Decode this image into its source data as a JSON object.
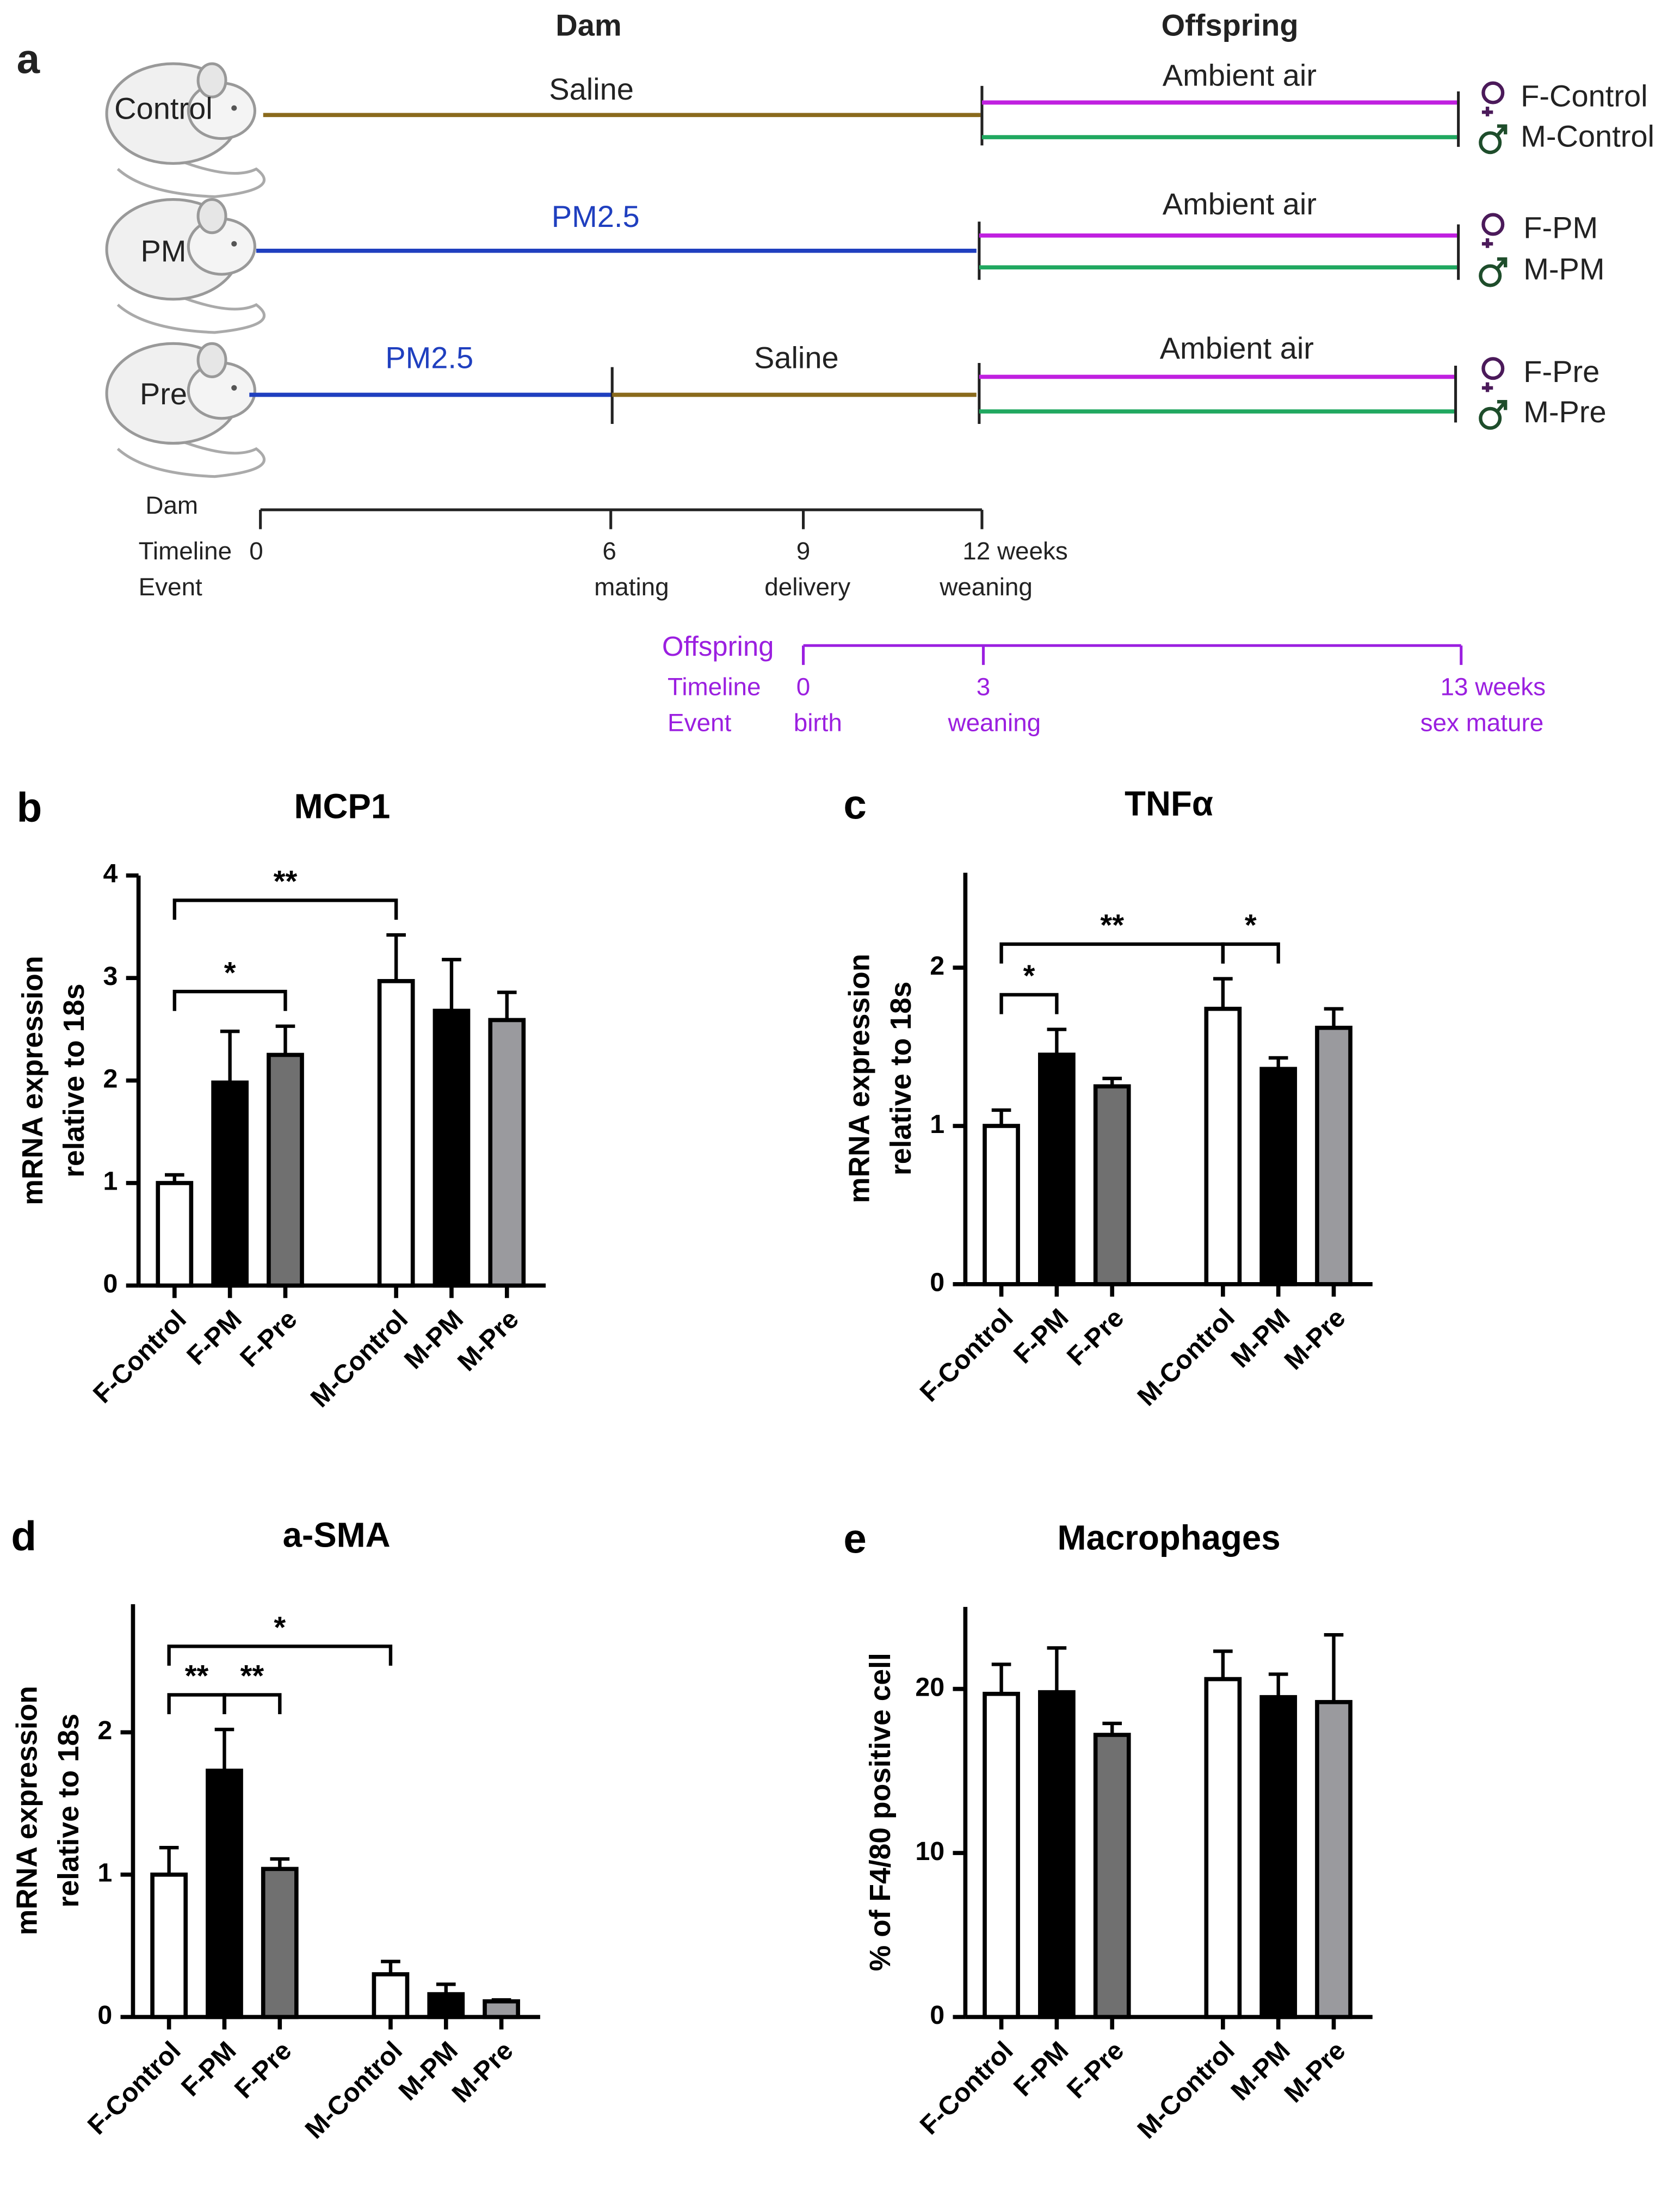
{
  "panel_a": {
    "label": "a",
    "dam_header": "Dam",
    "offspring_header": "Offspring",
    "rows": [
      {
        "mouse": "Control",
        "dam_segments": [
          "Saline"
        ],
        "offspring_exposure": "Ambient air",
        "outcomes": [
          "F-Control",
          "M-Control"
        ]
      },
      {
        "mouse": "PM",
        "dam_segments": [
          "PM2.5"
        ],
        "offspring_exposure": "Ambient air",
        "outcomes": [
          "F-PM",
          "M-PM"
        ]
      },
      {
        "mouse": "Pre",
        "dam_segments": [
          "PM2.5",
          "Saline"
        ],
        "offspring_exposure": "Ambient air",
        "outcomes": [
          "F-Pre",
          "M-Pre"
        ]
      }
    ],
    "dam_timeline": {
      "label": "Dam",
      "timeline_label": "Timeline",
      "event_label": "Event",
      "ticks": [
        {
          "time": "0"
        },
        {
          "time": "6",
          "event": "mating"
        },
        {
          "time": "9",
          "event": "delivery"
        },
        {
          "time": "12 weeks",
          "event": "weaning"
        }
      ]
    },
    "offspring_timeline": {
      "label": "Offspring",
      "timeline_label": "Timeline",
      "event_label": "Event",
      "ticks": [
        {
          "time": "0",
          "event": "birth"
        },
        {
          "time": "3",
          "event": "weaning"
        },
        {
          "time": "13 weeks",
          "event": "sex mature"
        }
      ]
    }
  },
  "chart_data": [
    {
      "type": "bar",
      "panel": "b",
      "title": "MCP1",
      "ylabel": [
        "mRNA expression",
        "relative to 18s"
      ],
      "categories": [
        "F-Control",
        "F-PM",
        "F-Pre",
        "M-Control",
        "M-PM",
        "M-Pre"
      ],
      "values": [
        1.0,
        1.98,
        2.25,
        2.97,
        2.68,
        2.59
      ],
      "errors": [
        0.08,
        0.5,
        0.28,
        0.45,
        0.5,
        0.27
      ],
      "colors": [
        "#ffffff",
        "#000000",
        "#707070",
        "#ffffff",
        "#000000",
        "#9a9a9e"
      ],
      "ylim": [
        0,
        4
      ],
      "yticks": [
        0,
        1,
        2,
        3,
        4
      ],
      "significance": [
        {
          "from": 0,
          "to": 2,
          "label": "*"
        },
        {
          "from": 0,
          "to": 3,
          "label": "**"
        }
      ]
    },
    {
      "type": "bar",
      "panel": "c",
      "title": "TNFα",
      "ylabel": [
        "mRNA expression",
        "relative to 18s"
      ],
      "categories": [
        "F-Control",
        "F-PM",
        "F-Pre",
        "M-Control",
        "M-PM",
        "M-Pre"
      ],
      "values": [
        1.0,
        1.45,
        1.25,
        1.74,
        1.36,
        1.62
      ],
      "errors": [
        0.1,
        0.16,
        0.05,
        0.19,
        0.07,
        0.12
      ],
      "colors": [
        "#ffffff",
        "#000000",
        "#707070",
        "#ffffff",
        "#000000",
        "#9a9a9e"
      ],
      "ylim": [
        0,
        2.6
      ],
      "yticks": [
        0,
        1,
        2
      ],
      "significance": [
        {
          "from": 0,
          "to": 1,
          "label": "*"
        },
        {
          "from": 3,
          "to": 4,
          "label": "*"
        },
        {
          "from": 0,
          "to": 3,
          "label": "**"
        }
      ]
    },
    {
      "type": "bar",
      "panel": "d",
      "title": "a-SMA",
      "ylabel": [
        "mRNA expression",
        "relative to 18s"
      ],
      "categories": [
        "F-Control",
        "F-PM",
        "F-Pre",
        "M-Control",
        "M-PM",
        "M-Pre"
      ],
      "values": [
        1.0,
        1.73,
        1.04,
        0.3,
        0.16,
        0.11
      ],
      "errors": [
        0.19,
        0.29,
        0.07,
        0.09,
        0.07,
        0.01
      ],
      "colors": [
        "#ffffff",
        "#000000",
        "#707070",
        "#ffffff",
        "#000000",
        "#9a9a9e"
      ],
      "ylim": [
        0,
        2.9
      ],
      "yticks": [
        0,
        1,
        2
      ],
      "significance": [
        {
          "from": 0,
          "to": 1,
          "label": "**"
        },
        {
          "from": 1,
          "to": 2,
          "label": "**"
        },
        {
          "from": 0,
          "to": 3,
          "label": "*"
        }
      ]
    },
    {
      "type": "bar",
      "panel": "e",
      "title": "Macrophages",
      "ylabel": [
        "% of F4/80 positive cell"
      ],
      "categories": [
        "F-Control",
        "F-PM",
        "F-Pre",
        "M-Control",
        "M-PM",
        "M-Pre"
      ],
      "values": [
        19.7,
        19.8,
        17.2,
        20.6,
        19.5,
        19.2
      ],
      "errors": [
        1.8,
        2.7,
        0.7,
        1.7,
        1.4,
        4.1
      ],
      "colors": [
        "#ffffff",
        "#000000",
        "#707070",
        "#ffffff",
        "#000000",
        "#9a9a9e"
      ],
      "ylim": [
        0,
        25
      ],
      "yticks": [
        0,
        10,
        20
      ]
    }
  ]
}
